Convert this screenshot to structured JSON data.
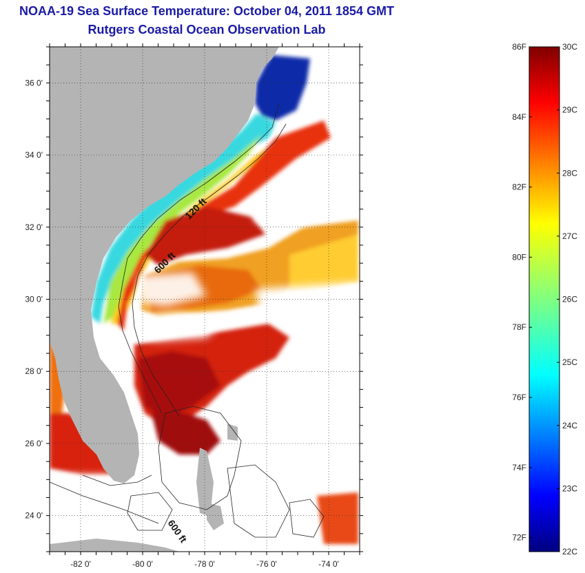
{
  "title": "NOAA-19 Sea Surface Temperature:  October 04, 2011 1854 GMT",
  "subtitle": "Rutgers Coastal Ocean Observation Lab",
  "map": {
    "lon_range": [
      -83,
      -73
    ],
    "lat_range": [
      23,
      37
    ],
    "lon_ticks": [
      {
        "value": -82,
        "label": "-82 0'"
      },
      {
        "value": -80,
        "label": "-80 0'"
      },
      {
        "value": -78,
        "label": "-78 0'"
      },
      {
        "value": -76,
        "label": "-76 0'"
      },
      {
        "value": -74,
        "label": "-74 0'"
      }
    ],
    "lat_ticks": [
      {
        "value": 24,
        "label": "24 0'"
      },
      {
        "value": 26,
        "label": "26 0'"
      },
      {
        "value": 28,
        "label": "28 0'"
      },
      {
        "value": 30,
        "label": "30 0'"
      },
      {
        "value": 32,
        "label": "32 0'"
      },
      {
        "value": 34,
        "label": "34 0'"
      },
      {
        "value": 36,
        "label": "36 0'"
      }
    ],
    "grid": "dotted",
    "land_color": "#b4b4b4",
    "contour_labels": [
      {
        "text": "120 ft",
        "lon": -78.5,
        "lat": 32.2
      },
      {
        "text": "600 ft",
        "lon": -79.5,
        "lat": 30.7
      },
      {
        "text": "600 ft",
        "lon": -79.2,
        "lat": 23.8
      }
    ]
  },
  "colorbar": {
    "range_c": [
      22,
      30
    ],
    "celsius_ticks": [
      "22C",
      "23C",
      "24C",
      "25C",
      "26C",
      "27C",
      "28C",
      "29C",
      "30C"
    ],
    "fahrenheit_ticks": [
      "72F",
      "74F",
      "76F",
      "78F",
      "80F",
      "82F",
      "84F",
      "86F"
    ],
    "fahrenheit_values": [
      72,
      74,
      76,
      78,
      80,
      82,
      84,
      86
    ]
  }
}
